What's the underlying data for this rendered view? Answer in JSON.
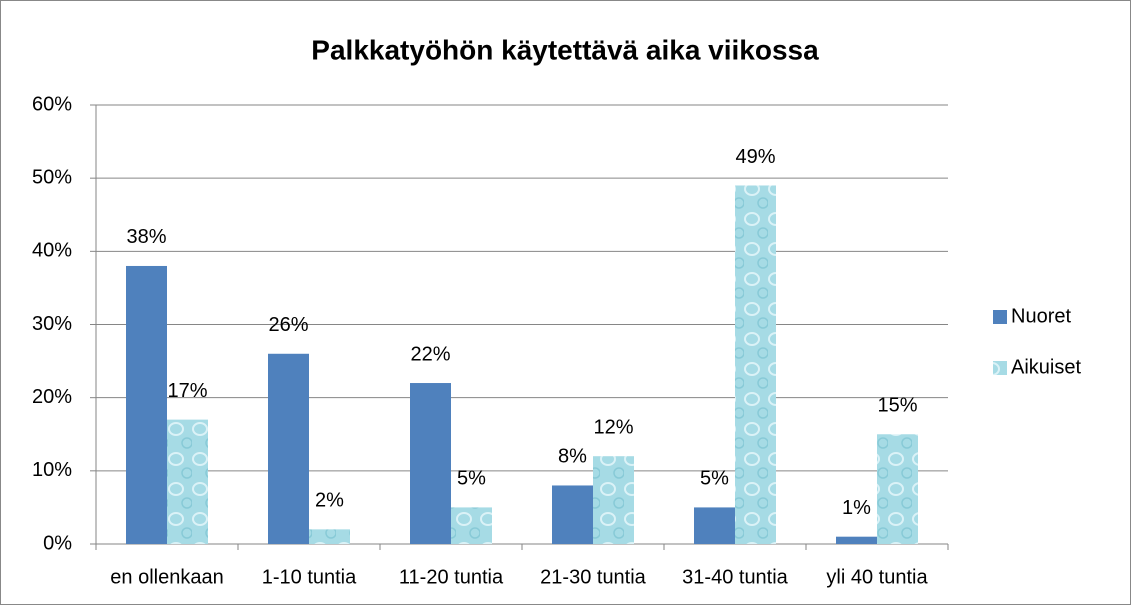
{
  "chart_data": {
    "type": "bar",
    "title": "Palkkatyöhön käytettävä aika viikossa",
    "categories": [
      "en ollenkaan",
      "1-10 tuntia",
      "11-20 tuntia",
      "21-30 tuntia",
      "31-40 tuntia",
      "yli 40 tuntia"
    ],
    "series": [
      {
        "name": "Nuoret",
        "color": "#4f81bd",
        "values": [
          38,
          26,
          22,
          8,
          5,
          1
        ],
        "value_labels": [
          "38%",
          "26%",
          "22%",
          "8%",
          "5%",
          "1%"
        ]
      },
      {
        "name": "Aikuiset",
        "color": "#a6dbe5",
        "values": [
          17,
          2,
          5,
          12,
          49,
          15
        ],
        "value_labels": [
          "17%",
          "2%",
          "5%",
          "12%",
          "49%",
          "15%"
        ]
      }
    ],
    "ylim": [
      0,
      60
    ],
    "yticks": [
      {
        "value": 0,
        "label": "0%"
      },
      {
        "value": 10,
        "label": "10%"
      },
      {
        "value": 20,
        "label": "20%"
      },
      {
        "value": 30,
        "label": "30%"
      },
      {
        "value": 40,
        "label": "40%"
      },
      {
        "value": 50,
        "label": "50%"
      },
      {
        "value": 60,
        "label": "60%"
      }
    ],
    "grid": true,
    "legend": "right"
  }
}
